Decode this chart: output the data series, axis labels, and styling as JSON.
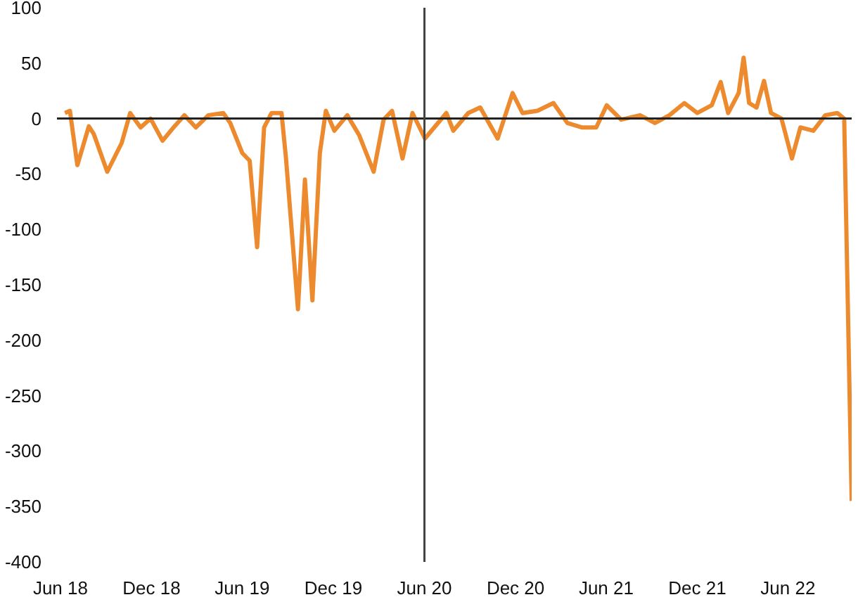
{
  "chart_data": {
    "type": "line",
    "x": [
      "2018-06-10",
      "2018-06-20",
      "2018-07-05",
      "2018-07-28",
      "2018-08-07",
      "2018-09-03",
      "2018-10-02",
      "2018-10-19",
      "2018-11-09",
      "2018-11-29",
      "2018-12-23",
      "2019-01-16",
      "2019-02-05",
      "2019-02-28",
      "2019-03-25",
      "2019-04-24",
      "2019-05-08",
      "2019-06-01",
      "2019-06-16",
      "2019-07-01",
      "2019-07-15",
      "2019-07-30",
      "2019-08-19",
      "2019-08-28",
      "2019-09-21",
      "2019-10-05",
      "2019-10-20",
      "2019-11-04",
      "2019-11-16",
      "2019-12-03",
      "2019-12-29",
      "2020-01-22",
      "2020-02-20",
      "2020-03-11",
      "2020-03-28",
      "2020-04-18",
      "2020-05-08",
      "2020-06-02",
      "2020-07-15",
      "2020-07-29",
      "2020-08-28",
      "2020-09-21",
      "2020-10-26",
      "2020-11-25",
      "2020-12-15",
      "2021-01-14",
      "2021-02-15",
      "2021-03-15",
      "2021-04-13",
      "2021-05-12",
      "2021-06-02",
      "2021-07-01",
      "2021-08-08",
      "2021-09-07",
      "2021-10-06",
      "2021-11-05",
      "2021-12-01",
      "2021-12-30",
      "2022-01-17",
      "2022-02-01",
      "2022-02-22",
      "2022-03-04",
      "2022-03-15",
      "2022-03-30",
      "2022-04-14",
      "2022-04-28",
      "2022-05-19",
      "2022-06-09",
      "2022-06-26",
      "2022-07-22",
      "2022-08-15",
      "2022-09-08",
      "2022-09-22",
      "2022-10-07"
    ],
    "series": [
      {
        "color": "#ed8a2e",
        "values": [
          5,
          7,
          -42,
          -7,
          -14,
          -48,
          -22,
          5,
          -8,
          0,
          -20,
          -7,
          3,
          -8,
          3,
          5,
          -4,
          -31,
          -38,
          -116,
          -8,
          5,
          5,
          -36,
          -172,
          -55,
          -164,
          -31,
          7,
          -11,
          3,
          -15,
          -48,
          -1,
          7,
          -36,
          5,
          -18,
          5,
          -11,
          5,
          10,
          -18,
          23,
          5,
          7,
          14,
          -4,
          -8,
          -8,
          12,
          -1,
          3,
          -4,
          3,
          14,
          5,
          12,
          33,
          5,
          23,
          55,
          14,
          10,
          34,
          5,
          0,
          -36,
          -8,
          -11,
          3,
          5,
          0,
          -345
        ]
      }
    ],
    "xlim": [
      "2018-05-25",
      "2022-10-07"
    ],
    "ylim": [
      -400,
      100
    ],
    "yticks": [
      -400,
      -350,
      -300,
      -250,
      -200,
      -150,
      -100,
      -50,
      0,
      50,
      100
    ],
    "xticks": [
      {
        "value": "2018-06-01",
        "label": "Jun 18"
      },
      {
        "value": "2018-12-01",
        "label": "Dec 18"
      },
      {
        "value": "2019-06-01",
        "label": "Jun 19"
      },
      {
        "value": "2019-12-01",
        "label": "Dec 19"
      },
      {
        "value": "2020-06-01",
        "label": "Jun 20"
      },
      {
        "value": "2020-12-01",
        "label": "Dec 20"
      },
      {
        "value": "2021-06-01",
        "label": "Jun 21"
      },
      {
        "value": "2021-12-01",
        "label": "Dec 21"
      },
      {
        "value": "2022-06-01",
        "label": "Jun 22"
      }
    ],
    "ref_lines": [
      {
        "axis": "y",
        "value": 0,
        "color": "#222222"
      },
      {
        "axis": "x",
        "value": "2020-06-01",
        "color": "#444444"
      }
    ],
    "grid": false,
    "marker": "none",
    "line_style": "solid"
  }
}
